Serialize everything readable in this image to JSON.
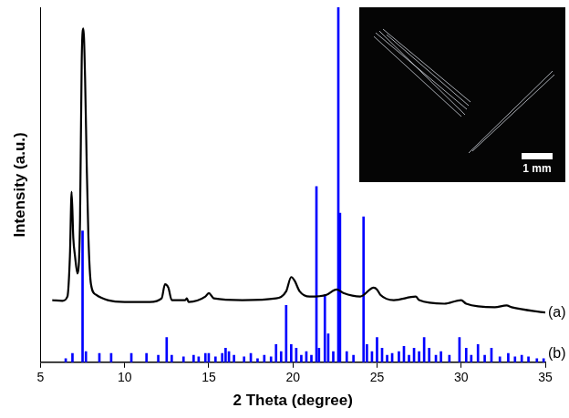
{
  "chart_data": {
    "type": "line",
    "x_label": "2 Theta (degree)",
    "y_label": "Intensity (a.u.)",
    "xlim": [
      5,
      35
    ],
    "xticks": [
      5,
      10,
      15,
      20,
      25,
      30,
      35
    ],
    "ylim": [
      0,
      100
    ],
    "tick_labels": "x",
    "grid": false,
    "inset": {
      "scale_bar": "1 mm"
    },
    "series": [
      {
        "name": "(a)",
        "type": "line",
        "color": "#000000",
        "x": [
          5.7,
          6.3,
          6.6,
          6.75,
          6.85,
          6.95,
          7.05,
          7.2,
          7.35,
          7.45,
          7.55,
          7.65,
          7.75,
          7.85,
          8.0,
          8.3,
          9,
          10,
          11.5,
          12.2,
          12.4,
          12.6,
          12.8,
          13.6,
          13.7,
          13.8,
          14.8,
          15.0,
          15.3,
          17,
          19,
          19.6,
          19.9,
          20.1,
          20.4,
          21,
          22,
          22.6,
          23,
          24,
          24.8,
          25.0,
          25.2,
          26,
          27.3,
          27.5,
          29,
          30,
          30.3,
          32,
          32.7,
          33,
          35
        ],
        "values": [
          17.5,
          17.3,
          18.5,
          30,
          48,
          35,
          30,
          25,
          40,
          85,
          94,
          80,
          55,
          35,
          22,
          19,
          17.5,
          17,
          17,
          18,
          22,
          21,
          17.5,
          17.5,
          18,
          17,
          18.5,
          19.5,
          18,
          17.5,
          18,
          20,
          24,
          23,
          20,
          18.5,
          19,
          20.5,
          19.5,
          18.5,
          21,
          20.5,
          19,
          17.5,
          18.5,
          17.5,
          16.5,
          17.5,
          16.5,
          15.5,
          16,
          15.5,
          14
        ]
      },
      {
        "name": "(b)",
        "type": "bar",
        "color": "#0000ff",
        "x": [
          6.5,
          6.9,
          7.5,
          7.7,
          8.5,
          9.2,
          10.4,
          11.3,
          12.0,
          12.5,
          12.8,
          13.5,
          14.1,
          14.4,
          14.8,
          15.0,
          15.4,
          15.8,
          16.0,
          16.2,
          16.5,
          17.1,
          17.5,
          17.9,
          18.3,
          18.7,
          19.0,
          19.3,
          19.6,
          19.9,
          20.2,
          20.5,
          20.8,
          21.1,
          21.4,
          21.55,
          21.9,
          22.1,
          22.4,
          22.7,
          22.8,
          23.2,
          23.6,
          24.2,
          24.4,
          24.7,
          25.0,
          25.3,
          25.6,
          25.9,
          26.3,
          26.6,
          26.9,
          27.2,
          27.5,
          27.8,
          28.1,
          28.5,
          28.8,
          29.3,
          29.9,
          30.3,
          30.6,
          31.0,
          31.4,
          31.8,
          32.3,
          32.8,
          33.2,
          33.6,
          34.0,
          34.5,
          34.9
        ],
        "values": [
          1,
          2.5,
          37,
          3,
          2.5,
          2.5,
          2.5,
          2.5,
          2,
          7,
          2,
          1.5,
          2,
          1.5,
          2.5,
          2.5,
          1.5,
          2.5,
          4,
          3,
          2,
          1.5,
          2.5,
          1,
          2,
          1.5,
          5,
          3,
          16,
          5,
          4,
          2,
          3,
          2,
          49.5,
          4,
          19,
          8,
          3,
          100,
          42,
          3,
          2,
          41,
          5,
          3,
          7,
          4,
          2,
          2.5,
          3,
          4.5,
          2,
          4,
          3,
          7,
          4,
          2,
          3,
          2,
          7,
          4,
          2,
          5,
          2,
          4,
          1.5,
          2.5,
          1.5,
          2,
          1.5,
          1,
          1
        ]
      }
    ]
  }
}
